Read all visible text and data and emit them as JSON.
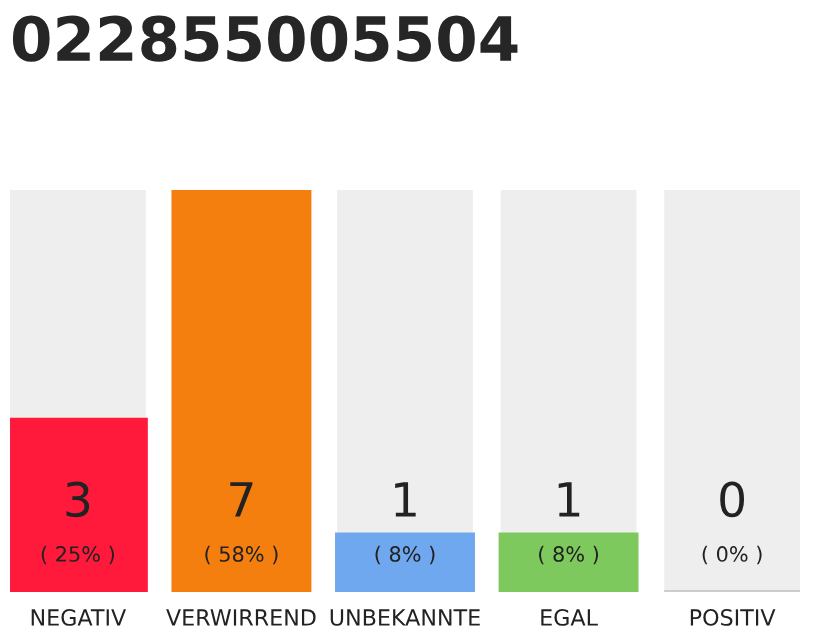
{
  "chart_data": {
    "type": "bar",
    "title": "022855005504",
    "categories": [
      "NEGATIV",
      "VERWIRREND",
      "UNBEKANNTE",
      "EGAL",
      "POSITIV"
    ],
    "values": [
      3,
      7,
      1,
      1,
      0
    ],
    "colors": [
      "#ff1a3c",
      "#f57f0e",
      "#6fa8ee",
      "#7dc95e",
      "#cccccc"
    ],
    "value_labels": [
      "3\n( 25% )",
      "7\n( 58% )",
      "1\n( 8% )",
      "1\n( 8% )",
      "0\n( 0% )"
    ],
    "ylim": [
      0,
      7
    ],
    "tick_labels": "x",
    "grid": false,
    "legend": false
  }
}
